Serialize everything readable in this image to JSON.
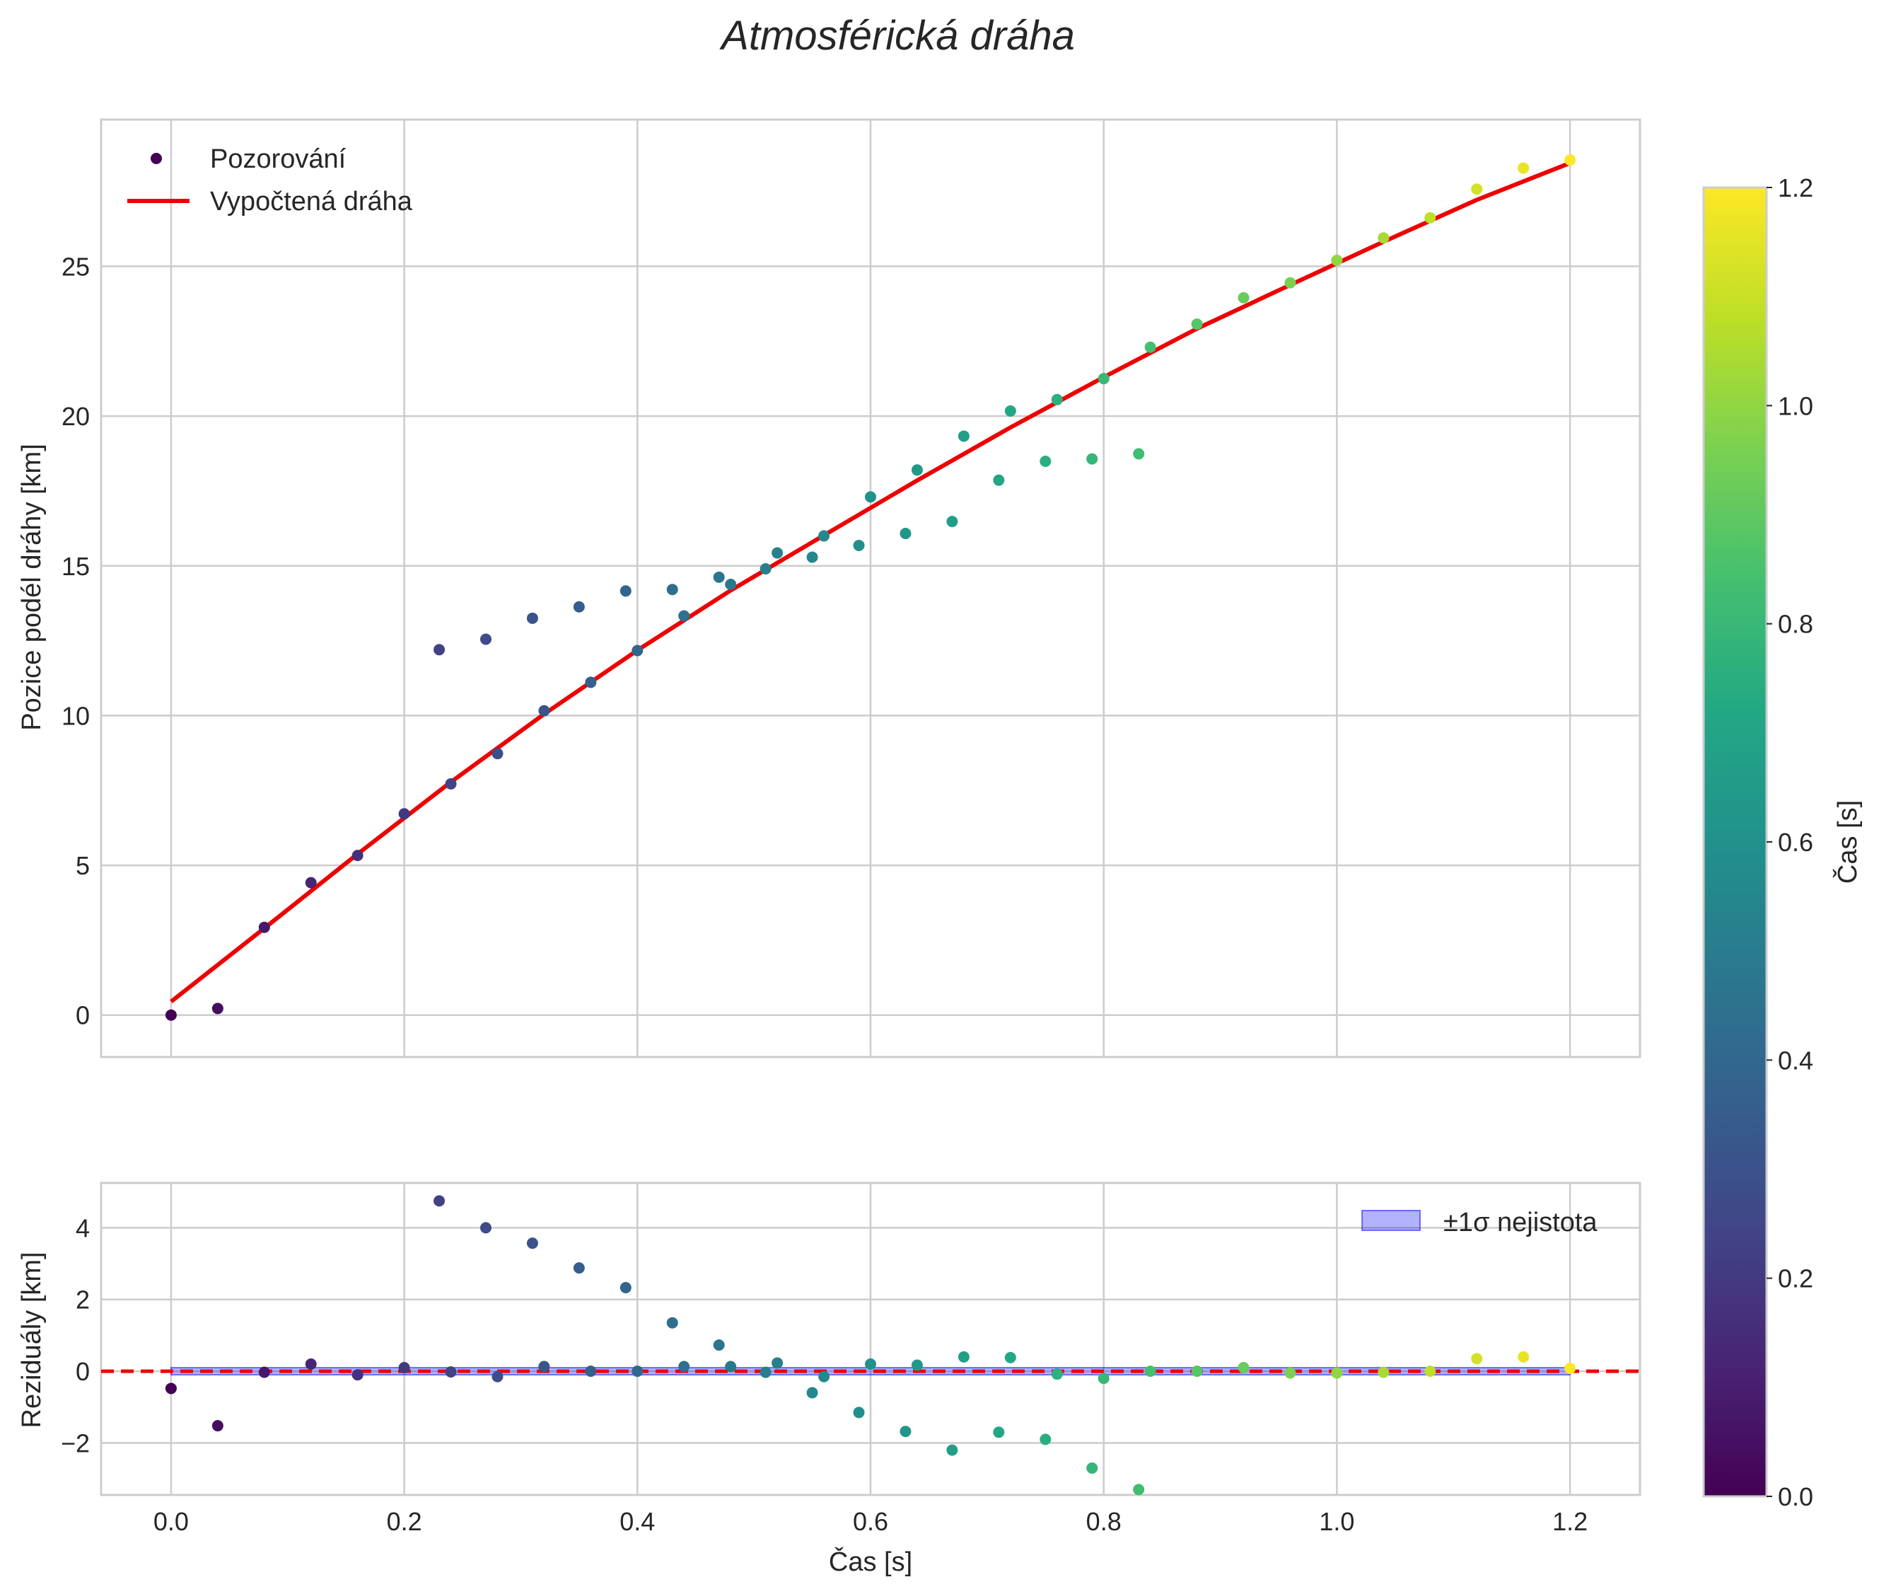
{
  "chart_data": [
    {
      "type": "scatter+line",
      "title": "Atmosférická dráha",
      "xlabel": "",
      "ylabel": "Pozice podél dráhy [km]",
      "xlim": [
        -0.06,
        1.26
      ],
      "ylim": [
        -1.4,
        29.9
      ],
      "xticks": [
        0.0,
        0.2,
        0.4,
        0.6,
        0.8,
        1.0,
        1.2
      ],
      "yticks": [
        0,
        5,
        10,
        15,
        20,
        25
      ],
      "grid": true,
      "legend": {
        "position": "top-left",
        "entries": [
          "Pozorování",
          "Vypočtená dráha"
        ]
      },
      "series": [
        {
          "name": "Pozorování",
          "kind": "scatter",
          "color_by": "time",
          "points": [
            [
              0.0,
              0.0
            ],
            [
              0.04,
              0.22
            ],
            [
              0.08,
              2.93
            ],
            [
              0.12,
              4.42
            ],
            [
              0.16,
              5.33
            ],
            [
              0.2,
              6.72
            ],
            [
              0.24,
              7.72
            ],
            [
              0.28,
              8.73
            ],
            [
              0.32,
              10.16
            ],
            [
              0.36,
              11.11
            ],
            [
              0.4,
              12.17
            ],
            [
              0.44,
              13.33
            ],
            [
              0.48,
              14.38
            ],
            [
              0.52,
              15.43
            ],
            [
              0.56,
              16.0
            ],
            [
              0.6,
              17.3
            ],
            [
              0.64,
              18.2
            ],
            [
              0.68,
              19.33
            ],
            [
              0.72,
              20.17
            ],
            [
              0.76,
              20.55
            ],
            [
              0.8,
              21.25
            ],
            [
              0.84,
              22.3
            ],
            [
              0.88,
              23.07
            ],
            [
              0.92,
              23.95
            ],
            [
              0.96,
              24.45
            ],
            [
              1.0,
              25.2
            ],
            [
              1.04,
              25.95
            ],
            [
              1.08,
              26.62
            ],
            [
              1.12,
              27.58
            ],
            [
              1.16,
              28.28
            ],
            [
              1.2,
              28.55
            ],
            [
              0.23,
              12.2
            ],
            [
              0.27,
              12.55
            ],
            [
              0.31,
              13.25
            ],
            [
              0.35,
              13.63
            ],
            [
              0.39,
              14.16
            ],
            [
              0.43,
              14.21
            ],
            [
              0.47,
              14.62
            ],
            [
              0.51,
              14.9
            ],
            [
              0.55,
              15.29
            ],
            [
              0.59,
              15.68
            ],
            [
              0.63,
              16.08
            ],
            [
              0.67,
              16.48
            ],
            [
              0.71,
              17.86
            ],
            [
              0.75,
              18.49
            ],
            [
              0.79,
              18.57
            ],
            [
              0.83,
              18.74
            ]
          ]
        },
        {
          "name": "Vypočtená dráha",
          "kind": "line",
          "color": "#ee0000",
          "points": [
            [
              0.0,
              0.45
            ],
            [
              0.08,
              2.9
            ],
            [
              0.16,
              5.38
            ],
            [
              0.24,
              7.78
            ],
            [
              0.32,
              10.05
            ],
            [
              0.4,
              12.18
            ],
            [
              0.48,
              14.18
            ],
            [
              0.56,
              16.02
            ],
            [
              0.64,
              17.85
            ],
            [
              0.72,
              19.62
            ],
            [
              0.8,
              21.3
            ],
            [
              0.88,
              22.92
            ],
            [
              0.96,
              24.38
            ],
            [
              1.04,
              25.82
            ],
            [
              1.12,
              27.22
            ],
            [
              1.2,
              28.45
            ]
          ]
        }
      ]
    },
    {
      "type": "scatter",
      "title": "",
      "xlabel": "Čas [s]",
      "ylabel": "Reziduály [km]",
      "xlim": [
        -0.06,
        1.26
      ],
      "ylim": [
        -3.45,
        5.25
      ],
      "xticks": [
        0.0,
        0.2,
        0.4,
        0.6,
        0.8,
        1.0,
        1.2
      ],
      "xtick_labels": [
        "0.0",
        "0.2",
        "0.4",
        "0.6",
        "0.8",
        "1.0",
        "1.2"
      ],
      "yticks": [
        -2,
        0,
        2,
        4
      ],
      "ytick_labels": [
        "−2",
        "0",
        "2",
        "4"
      ],
      "grid": true,
      "legend": {
        "position": "top-right",
        "entries": [
          "±1σ nejistota"
        ]
      },
      "reference_line": {
        "y": 0,
        "style": "dashed",
        "color": "#ee0000"
      },
      "uncertainty_band": {
        "label": "±1σ nejistota",
        "y": [
          -0.1,
          0.1
        ],
        "color": "#0000ff"
      },
      "residuals": [
        [
          0.0,
          -0.48
        ],
        [
          0.04,
          -1.52
        ],
        [
          0.08,
          -0.03
        ],
        [
          0.12,
          0.2
        ],
        [
          0.16,
          -0.1
        ],
        [
          0.2,
          0.1
        ],
        [
          0.24,
          -0.02
        ],
        [
          0.28,
          -0.15
        ],
        [
          0.32,
          0.13
        ],
        [
          0.36,
          0.0
        ],
        [
          0.4,
          0.0
        ],
        [
          0.44,
          0.13
        ],
        [
          0.48,
          0.13
        ],
        [
          0.52,
          0.23
        ],
        [
          0.56,
          -0.15
        ],
        [
          0.6,
          0.2
        ],
        [
          0.64,
          0.17
        ],
        [
          0.68,
          0.4
        ],
        [
          0.72,
          0.38
        ],
        [
          0.76,
          -0.08
        ],
        [
          0.8,
          -0.2
        ],
        [
          0.84,
          0.0
        ],
        [
          0.88,
          0.0
        ],
        [
          0.92,
          0.1
        ],
        [
          0.96,
          -0.05
        ],
        [
          1.0,
          -0.05
        ],
        [
          1.04,
          -0.03
        ],
        [
          1.08,
          0.0
        ],
        [
          1.12,
          0.35
        ],
        [
          1.16,
          0.4
        ],
        [
          1.2,
          0.08
        ],
        [
          0.23,
          4.75
        ],
        [
          0.27,
          4.0
        ],
        [
          0.31,
          3.57
        ],
        [
          0.35,
          2.88
        ],
        [
          0.39,
          2.33
        ],
        [
          0.43,
          1.35
        ],
        [
          0.47,
          0.73
        ],
        [
          0.51,
          -0.03
        ],
        [
          0.55,
          -0.6
        ],
        [
          0.59,
          -1.15
        ],
        [
          0.63,
          -1.68
        ],
        [
          0.67,
          -2.2
        ],
        [
          0.71,
          -1.7
        ],
        [
          0.75,
          -1.9
        ],
        [
          0.79,
          -2.7
        ],
        [
          0.83,
          -3.3
        ]
      ]
    },
    {
      "type": "colorbar",
      "label": "Čas [s]",
      "colormap": "viridis",
      "range": [
        0.0,
        1.2
      ],
      "ticks": [
        0.0,
        0.2,
        0.4,
        0.6,
        0.8,
        1.0,
        1.2
      ],
      "tick_labels": [
        "0.0",
        "0.2",
        "0.4",
        "0.6",
        "0.8",
        "1.0",
        "1.2"
      ]
    }
  ]
}
